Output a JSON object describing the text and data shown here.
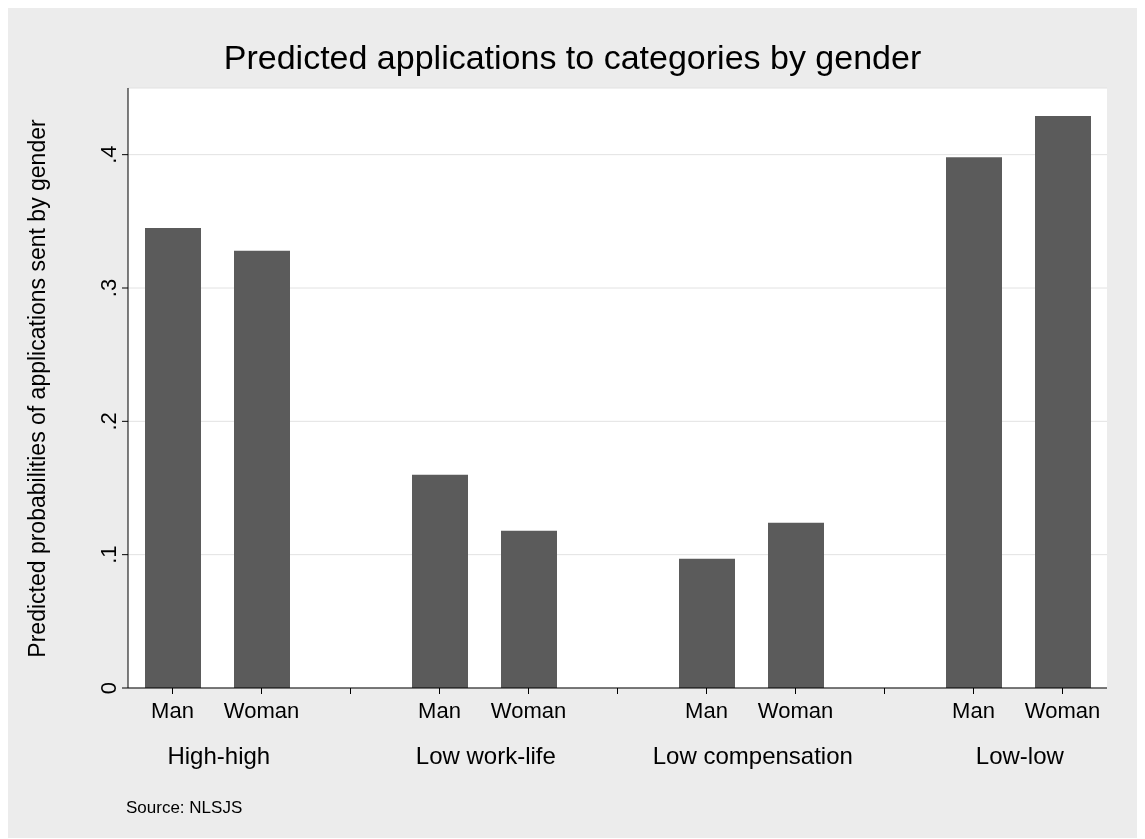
{
  "chart_data": {
    "type": "bar",
    "title": "Predicted applications to categories by gender",
    "ylabel": "Predicted probabilities of applications sent by gender",
    "categories": [
      "Man",
      "Woman",
      "Man",
      "Woman",
      "Man",
      "Woman",
      "Man",
      "Woman"
    ],
    "values": [
      0.345,
      0.328,
      0.16,
      0.118,
      0.097,
      0.124,
      0.398,
      0.429
    ],
    "color": "#5b5b5b",
    "ylim": [
      0,
      0.45
    ],
    "yticks": [
      0,
      {
        "value": 0.1,
        "label": ".1"
      },
      {
        "value": 0.2,
        "label": ".2"
      },
      {
        "value": 0.3,
        "label": ".3"
      },
      {
        "value": 0.4,
        "label": ".4"
      }
    ],
    "grid": "y",
    "annotations": [
      "High-high",
      "Low work-life",
      "Low compensation",
      "Low-low",
      "Source: NLSJS"
    ]
  }
}
